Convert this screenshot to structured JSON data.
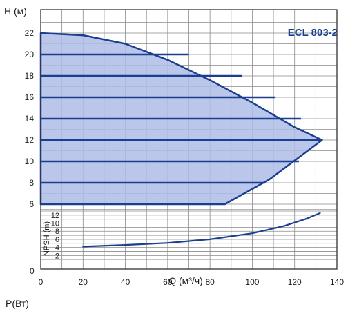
{
  "chart_data": [
    {
      "type": "area",
      "title": "ECL 803-2",
      "xlabel": "Q (м³/ч)",
      "ylabel": "H (м)",
      "x_ticks": [
        "0",
        "20",
        "40",
        "60",
        "80",
        "100",
        "120",
        "140"
      ],
      "y_ticks": [
        "6",
        "8",
        "10",
        "12",
        "14",
        "16",
        "18",
        "20",
        "22"
      ],
      "xlim": [
        0,
        140
      ],
      "ylim": [
        6,
        22
      ],
      "grid": true,
      "colors": {
        "fill": "#aebde6",
        "line": "#1b3f8f",
        "grid": "#8a8a8a"
      },
      "operating_envelope": {
        "points": [
          [
            0,
            22
          ],
          [
            20,
            21.8
          ],
          [
            40,
            21
          ],
          [
            60,
            19.5
          ],
          [
            80,
            17.6
          ],
          [
            100,
            15.5
          ],
          [
            120,
            13.2
          ],
          [
            133,
            12
          ],
          [
            108,
            8.3
          ],
          [
            87,
            6
          ],
          [
            0,
            6
          ]
        ]
      },
      "series": [
        {
          "speed_line": true,
          "values": [
            [
              0,
              20
            ],
            [
              70,
              20
            ]
          ]
        },
        {
          "speed_line": true,
          "values": [
            [
              0,
              18
            ],
            [
              95,
              18
            ]
          ]
        },
        {
          "speed_line": true,
          "values": [
            [
              0,
              16
            ],
            [
              111,
              16
            ]
          ]
        },
        {
          "speed_line": true,
          "values": [
            [
              0,
              14
            ],
            [
              123,
              14
            ]
          ]
        },
        {
          "speed_line": true,
          "values": [
            [
              0,
              12
            ],
            [
              133,
              12
            ]
          ]
        },
        {
          "speed_line": true,
          "values": [
            [
              0,
              10
            ],
            [
              122,
              10
            ]
          ]
        },
        {
          "speed_line": true,
          "values": [
            [
              0,
              8
            ],
            [
              106,
              8
            ]
          ]
        }
      ]
    },
    {
      "type": "line",
      "ylabel": "NPSH (m)",
      "y_ticks": [
        "2",
        "4",
        "6",
        "8",
        "10",
        "12"
      ],
      "axis_zero_label": "0",
      "ylim": [
        0,
        13
      ],
      "grid": true,
      "series": [
        {
          "values": [
            [
              20,
              4.2
            ],
            [
              40,
              4.6
            ],
            [
              60,
              5.1
            ],
            [
              80,
              6.0
            ],
            [
              100,
              7.5
            ],
            [
              115,
              9.3
            ],
            [
              125,
              11.0
            ],
            [
              132,
              12.5
            ]
          ]
        }
      ]
    }
  ],
  "footer": {
    "next_chart_label": "P(Вт)"
  }
}
